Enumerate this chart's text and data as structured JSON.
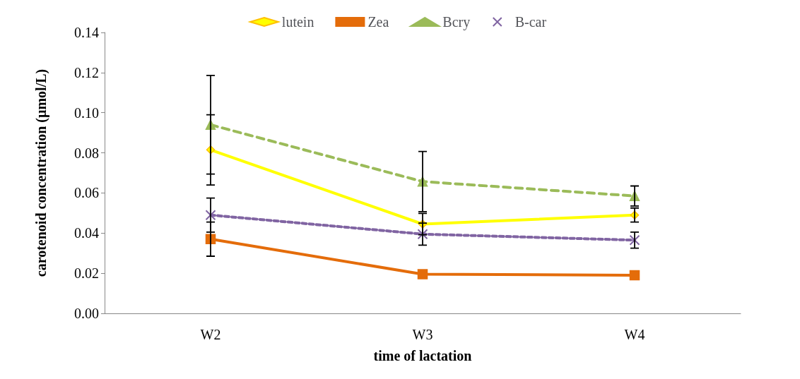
{
  "chart_data": {
    "type": "line",
    "xlabel": "time of lactation",
    "ylabel": "carotenoid concentration (µmol/L)",
    "categories": [
      "W2",
      "W3",
      "W4"
    ],
    "ylim": [
      0,
      0.14
    ],
    "yticks": [
      {
        "value": 0,
        "label": "0.00"
      },
      {
        "value": 0.02,
        "label": "0.02"
      },
      {
        "value": 0.04,
        "label": "0.04"
      },
      {
        "value": 0.06,
        "label": "0.06"
      },
      {
        "value": 0.08,
        "label": "0.08"
      },
      {
        "value": 0.1,
        "label": "0.10"
      },
      {
        "value": 0.12,
        "label": "0.12"
      },
      {
        "value": 0.14,
        "label": "0.14"
      }
    ],
    "grid": false,
    "legend": "top",
    "series": [
      {
        "name": "lutein",
        "color": "#ffff00",
        "marker": "diamond",
        "line_style": "solid",
        "values": [
          0.0815,
          0.0445,
          0.049
        ],
        "errors": [
          0.0175,
          0.0053,
          0.0035
        ]
      },
      {
        "name": "Zea",
        "color": "#e46c0a",
        "marker": "square",
        "line_style": "solid",
        "values": [
          0.037,
          0.0195,
          0.019
        ],
        "errors": [
          0.0085,
          null,
          null
        ]
      },
      {
        "name": "Bcry",
        "color": "#9bbb59",
        "marker": "triangle",
        "line_style": "dashed",
        "values": [
          0.094,
          0.0657,
          0.0585
        ],
        "errors": [
          0.0246,
          0.015,
          0.005
        ]
      },
      {
        "name": "B-car",
        "color": "#8064a2",
        "marker": "cross",
        "line_style": "dotted",
        "values": [
          0.049,
          0.0395,
          0.0365
        ],
        "errors": [
          0.0085,
          0.0055,
          0.004
        ]
      }
    ]
  }
}
